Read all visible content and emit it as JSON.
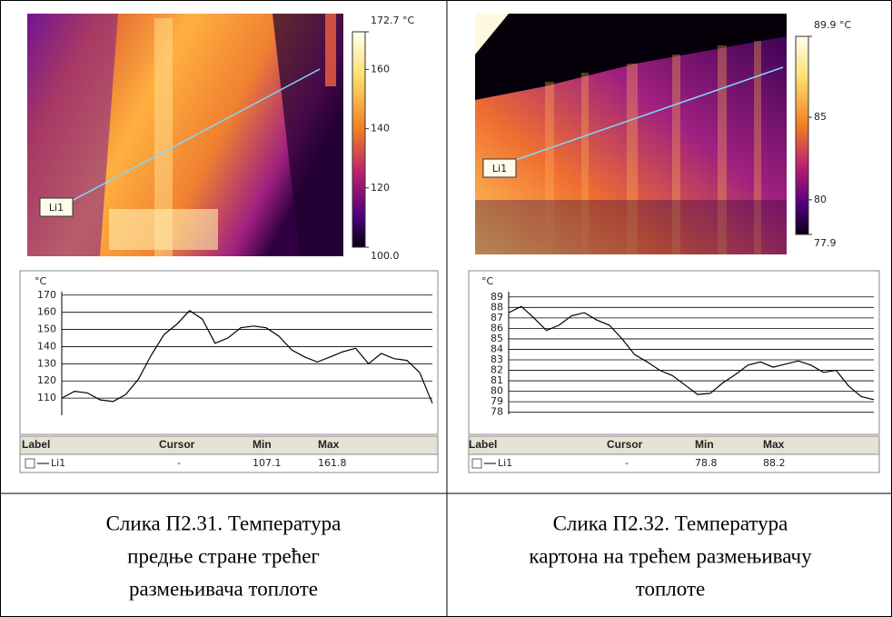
{
  "chart_data": [
    {
      "type": "line",
      "y_label": "°C",
      "ylim": [
        100,
        172
      ],
      "yticks": [
        110,
        120,
        130,
        140,
        150,
        160,
        170
      ],
      "grid": true,
      "series": [
        {
          "name": "Li1",
          "color": "#000000",
          "values": [
            110,
            114,
            113,
            109,
            108,
            112,
            121,
            135,
            147,
            153,
            161,
            156,
            142,
            145,
            151,
            152,
            151,
            146,
            138,
            134,
            131,
            134,
            137,
            139,
            130,
            136,
            133,
            132,
            125,
            107
          ]
        }
      ],
      "colorbar": {
        "lim": [
          100,
          172.7
        ],
        "ticks": [
          {
            "value": 172.7,
            "label": "172.7 °C"
          },
          160,
          140,
          120,
          {
            "value": 100,
            "label": "100.0"
          }
        ]
      },
      "table": {
        "columns": [
          "Label",
          "Cursor",
          "Min",
          "Max"
        ],
        "rows": [
          {
            "cursor": "-",
            "min": "107.1",
            "max": "161.8"
          }
        ]
      },
      "caption": [
        "Слика П2.31. Температура",
        "предње стране трећег",
        "размењивача топлоте"
      ]
    },
    {
      "type": "line",
      "y_label": "°C",
      "ylim": [
        77.8,
        89.5
      ],
      "yticks": [
        78,
        79,
        80,
        81,
        82,
        83,
        84,
        85,
        86,
        87,
        88,
        89
      ],
      "grid": true,
      "series": [
        {
          "name": "Li1",
          "color": "#000000",
          "values": [
            87.5,
            88.1,
            87.0,
            85.8,
            86.3,
            87.2,
            87.5,
            86.8,
            86.3,
            85.0,
            83.5,
            82.8,
            82.0,
            81.5,
            80.6,
            79.7,
            79.8,
            80.8,
            81.6,
            82.5,
            82.8,
            82.3,
            82.6,
            82.9,
            82.5,
            81.8,
            82.0,
            80.5,
            79.5,
            79.2
          ]
        }
      ],
      "colorbar": {
        "lim": [
          77.9,
          89.9
        ],
        "ticks": [
          {
            "value": 89.9,
            "label": "89.9 °C"
          },
          85,
          80,
          77.9
        ]
      },
      "table": {
        "columns": [
          "Label",
          "Cursor",
          "Min",
          "Max"
        ],
        "rows": [
          {
            "cursor": "-",
            "min": "78.8",
            "max": "88.2"
          }
        ]
      },
      "caption": [
        "Слика П2.32. Температура",
        "картона на трећем размењивачу",
        "топлоте"
      ]
    }
  ]
}
